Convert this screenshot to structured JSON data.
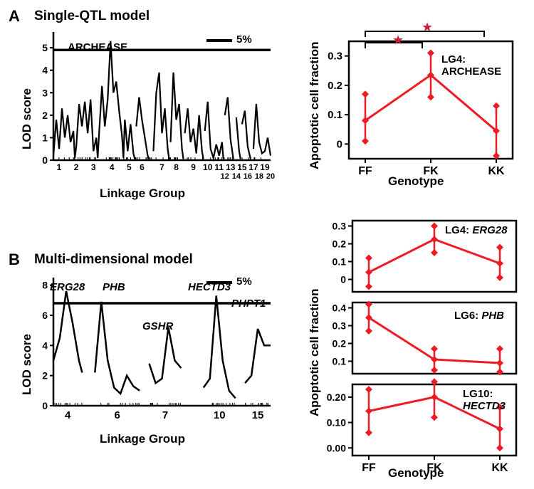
{
  "panelA": {
    "label": "A",
    "title": "Single-QTL model",
    "gene_label": "ARCHEASE",
    "legend": "5%",
    "y_axis": {
      "label": "LOD score",
      "ticks": [
        0,
        1,
        2,
        3,
        4,
        5
      ],
      "ylim": [
        0,
        5.7
      ]
    },
    "x_axis": {
      "label": "Linkage Group",
      "ticks": [
        1,
        2,
        3,
        4,
        5,
        6,
        7,
        8,
        9,
        10,
        "1112",
        "13",
        "15",
        "17",
        "19"
      ],
      "sub_ticks": [
        "14",
        "16",
        "18",
        "20"
      ]
    },
    "threshold": 4.9,
    "curve_color": "#000000",
    "line_width": 2.2,
    "background": "#ffffff",
    "curve": [
      [
        0,
        0.2
      ],
      [
        1,
        1.8
      ],
      [
        2,
        0.5
      ],
      [
        3,
        2.3
      ],
      [
        4,
        1.0
      ],
      [
        5,
        2.0
      ],
      [
        6,
        0.8
      ],
      [
        7,
        1.3
      ],
      [
        7.5,
        0.1
      ],
      [
        8,
        0.6
      ],
      [
        9,
        2.5
      ],
      [
        10,
        1.5
      ],
      [
        11,
        2.6
      ],
      [
        12,
        1.2
      ],
      [
        13,
        2.7
      ],
      [
        14,
        0.4
      ],
      [
        15,
        1.0
      ],
      [
        15.5,
        0.1
      ],
      [
        16,
        1.2
      ],
      [
        17,
        3.3
      ],
      [
        18,
        1.5
      ],
      [
        19,
        2.7
      ],
      [
        20,
        5.3
      ],
      [
        21,
        3.0
      ],
      [
        22,
        3.5
      ],
      [
        23,
        2.2
      ],
      [
        24,
        1.1
      ],
      [
        24.5,
        0.1
      ],
      [
        25,
        1.8
      ],
      [
        26,
        0.4
      ],
      [
        27,
        1.6
      ],
      [
        28,
        0.3
      ],
      [
        28.5,
        0.05
      ],
      [
        29,
        1.5
      ],
      [
        30,
        2.8
      ],
      [
        31,
        1.8
      ],
      [
        32,
        1.0
      ],
      [
        33,
        0.2
      ],
      [
        33.5,
        0.05
      ],
      [
        35,
        0.4
      ],
      [
        36,
        3.0
      ],
      [
        37,
        3.9
      ],
      [
        38,
        1.2
      ],
      [
        39,
        2.3
      ],
      [
        40,
        0.5
      ],
      [
        40.5,
        0.05
      ],
      [
        41,
        0.8
      ],
      [
        42,
        3.9
      ],
      [
        43,
        1.8
      ],
      [
        44,
        2.5
      ],
      [
        45,
        0.5
      ],
      [
        45.5,
        0.05
      ],
      [
        46,
        1.2
      ],
      [
        47,
        2.3
      ],
      [
        48,
        0.8
      ],
      [
        49,
        1.4
      ],
      [
        50,
        0.3
      ],
      [
        51,
        2.0
      ],
      [
        52,
        0.4
      ],
      [
        52.5,
        0.05
      ],
      [
        53,
        1.3
      ],
      [
        54,
        2.6
      ],
      [
        55,
        0.5
      ],
      [
        56,
        0.1
      ],
      [
        57,
        0.7
      ],
      [
        58,
        0.2
      ],
      [
        59,
        0.8
      ],
      [
        59.5,
        0.05
      ],
      [
        60,
        2.0
      ],
      [
        61,
        2.8
      ],
      [
        62,
        0.9
      ],
      [
        63,
        0.05
      ],
      [
        64,
        1.9
      ],
      [
        65,
        0.4
      ],
      [
        65.5,
        0.05
      ],
      [
        66,
        1.6
      ],
      [
        67,
        2.2
      ],
      [
        68,
        0.6
      ],
      [
        69,
        0.05
      ],
      [
        70,
        0.5
      ],
      [
        71,
        2.5
      ],
      [
        72,
        0.8
      ],
      [
        73,
        0.3
      ],
      [
        74,
        0.4
      ],
      [
        75,
        1.0
      ],
      [
        76,
        0.2
      ]
    ]
  },
  "panelA_right": {
    "y_axis": {
      "label": "Apoptotic cell fraction",
      "ticks": [
        0,
        0.1,
        0.2,
        0.3
      ],
      "ylim": [
        -0.05,
        0.35
      ]
    },
    "x_axis": {
      "label": "Genotype",
      "ticks": [
        "FF",
        "FK",
        "KK"
      ]
    },
    "series_label": "LG4: ARCHEASE",
    "color": "#ed1c24",
    "marker_color": "#ed1c24",
    "line_width": 3,
    "points": [
      {
        "x": "FF",
        "y": 0.08,
        "lo": 0.01,
        "hi": 0.17
      },
      {
        "x": "FK",
        "y": 0.235,
        "lo": 0.16,
        "hi": 0.31
      },
      {
        "x": "KK",
        "y": 0.045,
        "lo": -0.04,
        "hi": 0.13
      }
    ],
    "sig_color": "#c91f3a"
  },
  "panelB": {
    "label": "B",
    "title": "Multi-dimensional model",
    "legend": "5%",
    "y_axis": {
      "label": "LOD score",
      "ticks": [
        0,
        2,
        4,
        6,
        8
      ],
      "ylim": [
        0,
        8.5
      ]
    },
    "x_axis": {
      "label": "Linkage Group",
      "ticks": [
        4,
        6,
        7,
        10,
        15
      ]
    },
    "threshold": 6.8,
    "curve_color": "#000000",
    "line_width": 2.5,
    "genes": [
      "ERG28",
      "PHB",
      "GSHR",
      "HECTD3",
      "PHPT1"
    ],
    "segments": [
      [
        [
          0,
          3.0
        ],
        [
          2,
          4.5
        ],
        [
          4,
          7.6
        ],
        [
          6,
          5.5
        ],
        [
          8,
          3.0
        ],
        [
          9,
          2.2
        ]
      ],
      [
        [
          13,
          2.2
        ],
        [
          15,
          6.9
        ],
        [
          17,
          3.0
        ],
        [
          19,
          1.2
        ],
        [
          21,
          0.8
        ],
        [
          23,
          2.0
        ],
        [
          25,
          1.3
        ],
        [
          27,
          1.0
        ]
      ],
      [
        [
          30,
          2.8
        ],
        [
          32,
          1.5
        ],
        [
          34,
          1.8
        ],
        [
          36,
          5.2
        ],
        [
          38,
          3.0
        ],
        [
          40,
          2.5
        ]
      ],
      [
        [
          47,
          1.2
        ],
        [
          49,
          1.8
        ],
        [
          51,
          7.3
        ],
        [
          53,
          3.0
        ],
        [
          55,
          1.0
        ],
        [
          57,
          0.5
        ]
      ],
      [
        [
          60,
          1.5
        ],
        [
          62,
          2.0
        ],
        [
          64,
          5.1
        ],
        [
          66,
          4.0
        ],
        [
          68,
          4.0
        ]
      ]
    ]
  },
  "panelB_right": {
    "y_axis_label": "Apoptotic cell fraction",
    "x_axis_label": "Genotype",
    "x_ticks": [
      "FF",
      "FK",
      "KK"
    ],
    "color": "#ed1c24",
    "line_width": 3,
    "charts": [
      {
        "label": "LG4: ERG28",
        "label_italic_part": "ERG28",
        "yticks": [
          0,
          0.1,
          0.2,
          0.3
        ],
        "ylim": [
          -0.07,
          0.33
        ],
        "points": [
          {
            "x": "FF",
            "y": 0.04,
            "lo": -0.04,
            "hi": 0.12
          },
          {
            "x": "FK",
            "y": 0.225,
            "lo": 0.15,
            "hi": 0.3
          },
          {
            "x": "KK",
            "y": 0.09,
            "lo": 0.01,
            "hi": 0.18
          }
        ]
      },
      {
        "label": "LG6: PHB",
        "label_italic_part": "PHB",
        "yticks": [
          0.1,
          0.2,
          0.3,
          0.4
        ],
        "ylim": [
          0.03,
          0.43
        ],
        "points": [
          {
            "x": "FF",
            "y": 0.345,
            "lo": 0.27,
            "hi": 0.42
          },
          {
            "x": "FK",
            "y": 0.11,
            "lo": 0.05,
            "hi": 0.17
          },
          {
            "x": "KK",
            "y": 0.09,
            "lo": 0.04,
            "hi": 0.17
          }
        ]
      },
      {
        "label": "LG10: HECTD3",
        "label_italic_part": "HECTD3",
        "yticks": [
          "0.00",
          "0.10",
          "0.20"
        ],
        "ylim": [
          -0.03,
          0.25
        ],
        "points": [
          {
            "x": "FF",
            "y": 0.145,
            "lo": 0.06,
            "hi": 0.23
          },
          {
            "x": "FK",
            "y": 0.2,
            "lo": 0.12,
            "hi": 0.26
          },
          {
            "x": "KK",
            "y": 0.075,
            "lo": 0.0,
            "hi": 0.16
          }
        ]
      }
    ]
  }
}
